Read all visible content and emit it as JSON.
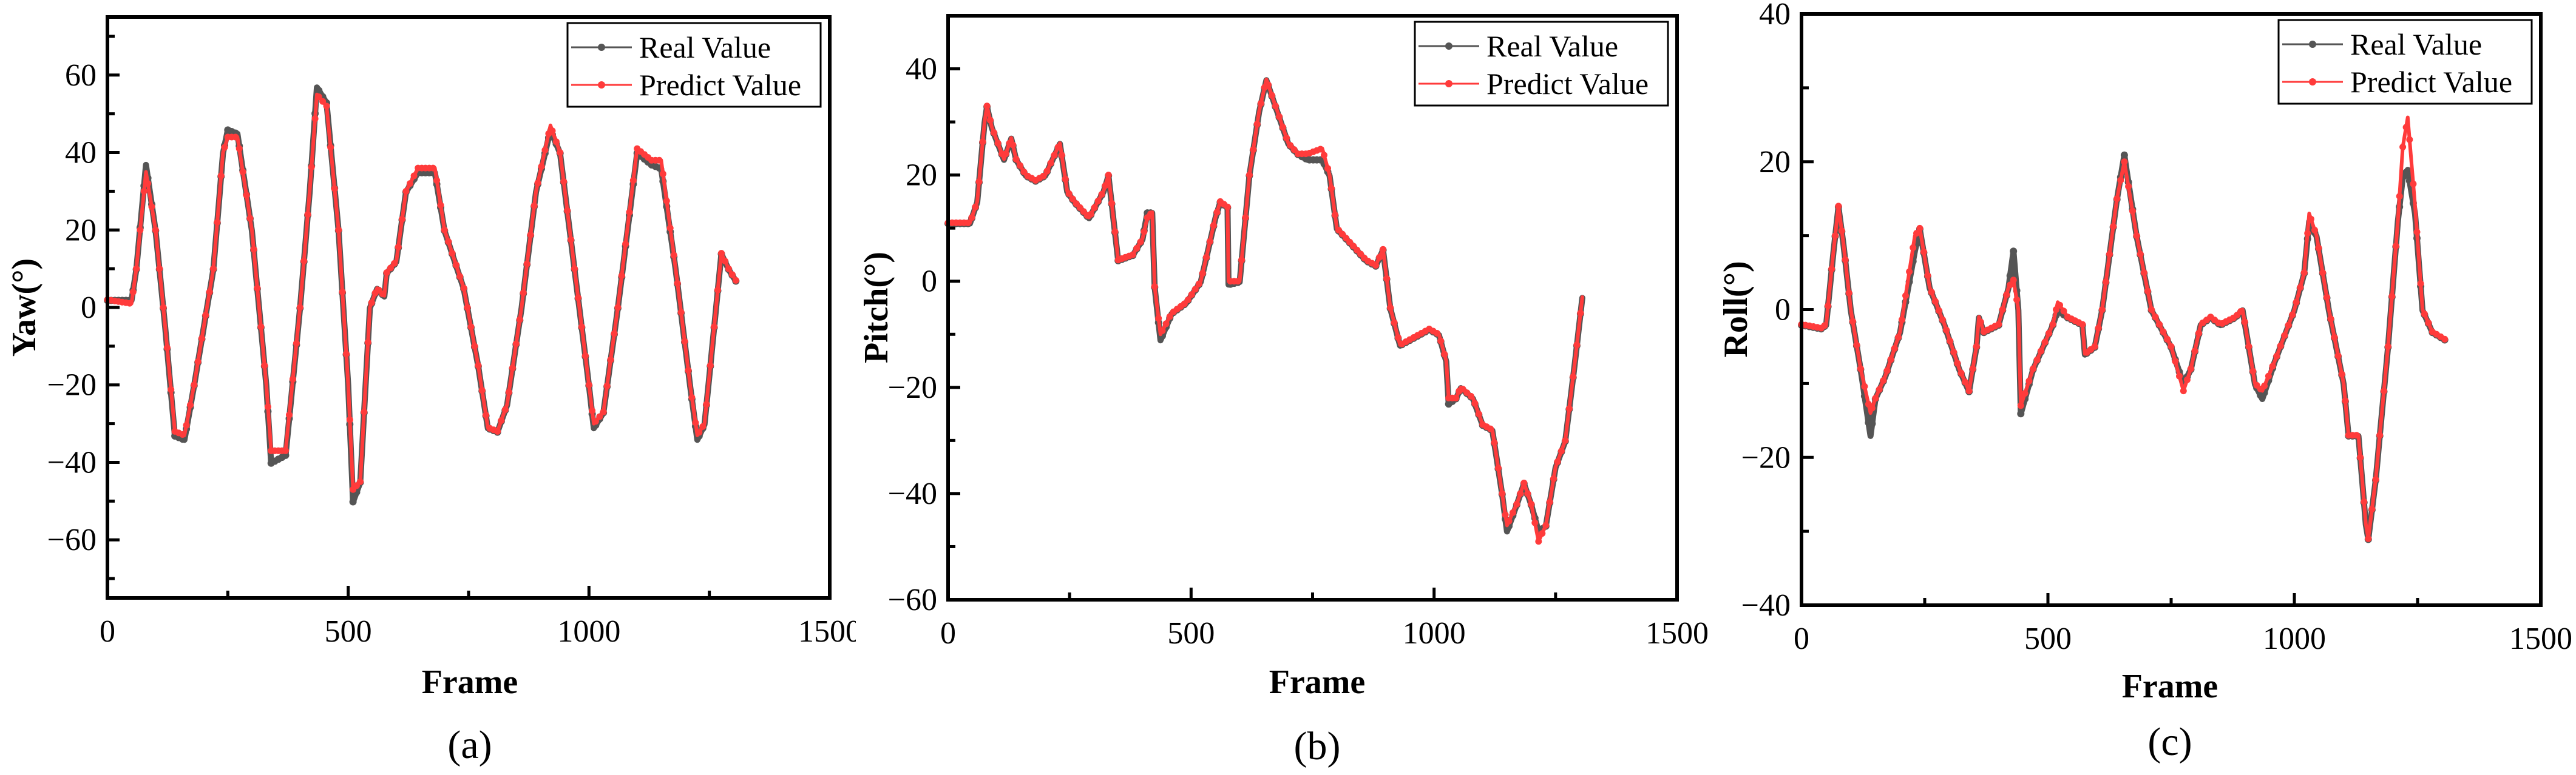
{
  "figure": {
    "legend": {
      "real_label": "Real Value",
      "predict_label": "Predict Value",
      "real_color": "#555555",
      "predict_color": "#ff3b3b"
    },
    "x_axis_label": "Frame"
  },
  "chart_data": [
    {
      "type": "line",
      "panel": "(a)",
      "title": "",
      "xlabel": "Frame",
      "ylabel": "Yaw(°)",
      "xlim": [
        0,
        1500
      ],
      "ylim": [
        -75,
        75
      ],
      "xticks": [
        0,
        500,
        1000,
        1500
      ],
      "yticks": [
        -60,
        -40,
        -20,
        0,
        20,
        40,
        60
      ],
      "legend_position": "upper right",
      "grid": false,
      "x": [
        0,
        50,
        60,
        80,
        100,
        120,
        140,
        160,
        180,
        220,
        240,
        250,
        270,
        300,
        330,
        340,
        370,
        400,
        420,
        435,
        455,
        480,
        500,
        510,
        525,
        545,
        560,
        575,
        580,
        600,
        620,
        645,
        680,
        700,
        740,
        770,
        790,
        810,
        830,
        860,
        890,
        920,
        940,
        970,
        1000,
        1010,
        1030,
        1060,
        1100,
        1130,
        1150,
        1180,
        1210,
        1225,
        1240,
        1260,
        1275,
        1290,
        1305
      ],
      "series": [
        {
          "name": "Real Value",
          "values": [
            2,
            2,
            10,
            37,
            20,
            -5,
            -33,
            -34,
            -20,
            10,
            40,
            46,
            45,
            20,
            -20,
            -40,
            -38,
            0,
            30,
            57,
            53,
            20,
            -20,
            -50,
            -45,
            0,
            5,
            3,
            9,
            12,
            30,
            35,
            35,
            20,
            5,
            -15,
            -31,
            -32,
            -25,
            0,
            30,
            46,
            40,
            10,
            -20,
            -31,
            -27,
            0,
            40,
            37,
            36,
            10,
            -20,
            -34,
            -30,
            -5,
            14,
            10,
            7
          ]
        },
        {
          "name": "Predict Value",
          "values": [
            2,
            1,
            10,
            35,
            20,
            -5,
            -32,
            -33,
            -20,
            10,
            40,
            44,
            44,
            20,
            -20,
            -37,
            -37,
            0,
            30,
            55,
            52,
            20,
            -20,
            -47,
            -45,
            0,
            5,
            3,
            9,
            12,
            30,
            36,
            36,
            20,
            5,
            -15,
            -31,
            -32,
            -25,
            0,
            30,
            47,
            40,
            10,
            -20,
            -30,
            -27,
            0,
            41,
            38,
            38,
            10,
            -20,
            -33,
            -30,
            -5,
            14,
            10,
            7
          ]
        }
      ]
    },
    {
      "type": "line",
      "panel": "(b)",
      "title": "",
      "xlabel": "Frame",
      "ylabel": "Pitch(°)",
      "xlim": [
        0,
        1500
      ],
      "ylim": [
        -60,
        50
      ],
      "xticks": [
        0,
        500,
        1000,
        1500
      ],
      "yticks": [
        -60,
        -40,
        -20,
        0,
        20,
        40
      ],
      "legend_position": "upper right",
      "grid": false,
      "x": [
        0,
        45,
        60,
        75,
        80,
        90,
        115,
        130,
        140,
        160,
        180,
        200,
        230,
        245,
        260,
        290,
        320,
        330,
        340,
        350,
        380,
        400,
        410,
        420,
        425,
        437,
        460,
        490,
        520,
        550,
        560,
        575,
        577,
        600,
        620,
        640,
        655,
        670,
        700,
        720,
        740,
        770,
        785,
        800,
        830,
        860,
        880,
        895,
        910,
        930,
        950,
        990,
        1010,
        1025,
        1030,
        1045,
        1055,
        1080,
        1100,
        1120,
        1140,
        1150,
        1170,
        1185,
        1200,
        1215,
        1230,
        1250,
        1270,
        1290,
        1305
      ],
      "series": [
        {
          "name": "Real Value",
          "values": [
            11,
            11,
            15,
            30,
            33,
            29,
            23,
            27,
            23,
            20,
            19,
            20,
            26,
            17,
            15,
            12,
            17,
            20,
            12,
            4,
            5,
            8,
            13,
            13,
            -1,
            -11,
            -6,
            -4,
            0,
            12,
            15,
            14,
            -0.5,
            0,
            20,
            32,
            38,
            34,
            26,
            24,
            23,
            23,
            20,
            10,
            7,
            4,
            3,
            6,
            -5,
            -12,
            -11,
            -9,
            -10,
            -15,
            -23,
            -22,
            -20,
            -22,
            -27,
            -28,
            -40,
            -47,
            -42,
            -38,
            -42,
            -47,
            -46,
            -35,
            -30,
            -15,
            -3
          ]
        },
        {
          "name": "Predict Value",
          "values": [
            11,
            11,
            15,
            30,
            33,
            29,
            23,
            27,
            23,
            20,
            19,
            20,
            26,
            17,
            15,
            12,
            17,
            20,
            12,
            4,
            5,
            8,
            12,
            13,
            -1,
            -10,
            -6,
            -4,
            0,
            12,
            15,
            14,
            0,
            0,
            20,
            32,
            38,
            34,
            26,
            24,
            24,
            25,
            20,
            10,
            7,
            4,
            3,
            6,
            -5,
            -12,
            -11,
            -9,
            -10,
            -15,
            -22,
            -22,
            -20,
            -22,
            -27,
            -28,
            -40,
            -46,
            -42,
            -38,
            -42,
            -49,
            -46,
            -35,
            -30,
            -15,
            -3
          ]
        }
      ]
    },
    {
      "type": "line",
      "panel": "(c)",
      "title": "",
      "xlabel": "Frame",
      "ylabel": "Roll(°)",
      "xlim": [
        0,
        1500
      ],
      "ylim": [
        -40,
        40
      ],
      "xticks": [
        0,
        500,
        1000,
        1500
      ],
      "yticks": [
        -40,
        -20,
        0,
        20,
        40
      ],
      "legend_position": "upper right",
      "grid": false,
      "x": [
        0,
        40,
        50,
        65,
        75,
        85,
        100,
        120,
        140,
        150,
        170,
        200,
        230,
        240,
        260,
        290,
        320,
        340,
        355,
        360,
        370,
        400,
        420,
        430,
        440,
        445,
        470,
        510,
        520,
        540,
        570,
        575,
        595,
        610,
        640,
        655,
        680,
        710,
        750,
        775,
        790,
        810,
        830,
        850,
        880,
        895,
        920,
        935,
        960,
        1000,
        1020,
        1030,
        1045,
        1070,
        1100,
        1110,
        1130,
        1145,
        1150,
        1165,
        1190,
        1210,
        1220,
        1230,
        1245,
        1260,
        1280,
        1305
      ],
      "series": [
        {
          "name": "Real Value",
          "values": [
            -2,
            -2.5,
            -2,
            8,
            14,
            9,
            0,
            -8,
            -17,
            -12,
            -9,
            -3,
            8,
            11,
            3,
            -2,
            -8,
            -11,
            -5,
            -1,
            -3,
            -2,
            3,
            8,
            0,
            -14,
            -8,
            -2,
            0,
            -1,
            -2,
            -6,
            -5,
            0,
            15,
            21,
            10,
            0,
            -5,
            -10,
            -8,
            -2,
            -1,
            -2,
            -1,
            0,
            -10,
            -12,
            -7,
            0,
            5,
            12,
            10,
            0,
            -10,
            -17,
            -17,
            -29,
            -31,
            -23,
            -5,
            12,
            18,
            19,
            13,
            0,
            -3,
            -4
          ]
        },
        {
          "name": "Predict Value",
          "values": [
            -2,
            -2.5,
            -2,
            8,
            14,
            9,
            0,
            -8,
            -14,
            -12,
            -9,
            -3,
            10,
            11,
            3,
            -2,
            -8,
            -11,
            -5,
            -1,
            -3,
            -2,
            3,
            4,
            0,
            -13,
            -8,
            -2,
            1,
            -1,
            -2,
            -6,
            -5,
            0,
            15,
            20,
            10,
            0,
            -5,
            -11,
            -8,
            -2,
            -1,
            -2,
            -1,
            0,
            -10,
            -11,
            -7,
            0,
            5,
            13,
            10,
            0,
            -10,
            -17,
            -17,
            -29,
            -31,
            -23,
            -5,
            12,
            22,
            26,
            14,
            0,
            -3,
            -4
          ]
        }
      ]
    }
  ],
  "panels": [
    {
      "caption": "(a)",
      "ylabel": "Yaw(°)",
      "ytick_labels": [
        "−60",
        "−40",
        "−20",
        "0",
        "20",
        "40",
        "60"
      ],
      "xtick_labels": [
        "0",
        "500",
        "1000",
        "1500"
      ]
    },
    {
      "caption": "(b)",
      "ylabel": "Pitch(°)",
      "ytick_labels": [
        "−60",
        "−40",
        "−20",
        "0",
        "20",
        "40"
      ],
      "xtick_labels": [
        "0",
        "500",
        "1000",
        "1500"
      ]
    },
    {
      "caption": "(c)",
      "ylabel": "Roll(°)",
      "ytick_labels": [
        "−40",
        "−20",
        "0",
        "20",
        "40"
      ],
      "xtick_labels": [
        "0",
        "500",
        "1000",
        "1500"
      ]
    }
  ]
}
